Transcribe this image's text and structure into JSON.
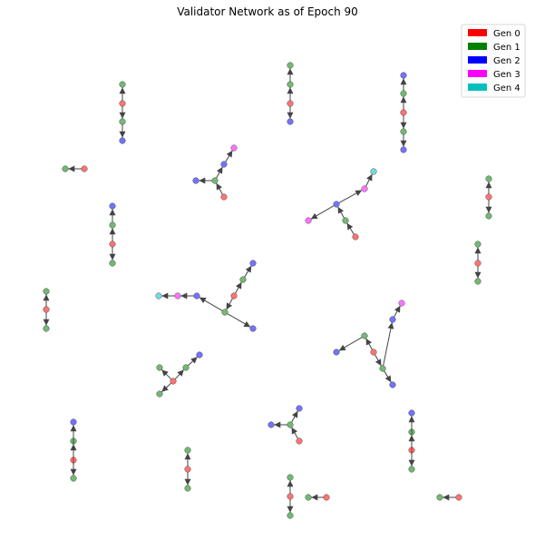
{
  "title": "Validator Network as of Epoch 90",
  "generations": [
    {
      "label": "Gen 0",
      "color": "#ff0000"
    },
    {
      "label": "Gen 1",
      "color": "#008000"
    },
    {
      "label": "Gen 2",
      "color": "#0000ff"
    },
    {
      "label": "Gen 3",
      "color": "#ff00ff"
    },
    {
      "label": "Gen 4",
      "color": "#00bfbf"
    }
  ],
  "nodes": [
    {
      "id": "a0",
      "gen": 0
    },
    {
      "id": "a1",
      "gen": 1
    },
    {
      "id": "a2",
      "gen": 1
    },
    {
      "id": "a3",
      "gen": 2
    },
    {
      "id": "b0",
      "gen": 0
    },
    {
      "id": "b1",
      "gen": 1
    },
    {
      "id": "b2",
      "gen": 1
    },
    {
      "id": "b3",
      "gen": 2
    },
    {
      "id": "c0",
      "gen": 0
    },
    {
      "id": "c1",
      "gen": 1
    },
    {
      "id": "c2",
      "gen": 1
    },
    {
      "id": "c3",
      "gen": 2
    },
    {
      "id": "c4",
      "gen": 2
    },
    {
      "id": "d0",
      "gen": 0
    },
    {
      "id": "d1",
      "gen": 1
    },
    {
      "id": "e0",
      "gen": 0
    },
    {
      "id": "e1",
      "gen": 1
    },
    {
      "id": "e2",
      "gen": 2
    },
    {
      "id": "e3",
      "gen": 2
    },
    {
      "id": "e4",
      "gen": 3
    },
    {
      "id": "f0",
      "gen": 0
    },
    {
      "id": "f1",
      "gen": 1
    },
    {
      "id": "f2",
      "gen": 1
    },
    {
      "id": "g0",
      "gen": 0
    },
    {
      "id": "g1",
      "gen": 1
    },
    {
      "id": "g2",
      "gen": 1
    },
    {
      "id": "g3",
      "gen": 2
    },
    {
      "id": "h0",
      "gen": 0
    },
    {
      "id": "h1",
      "gen": 1
    },
    {
      "id": "h2",
      "gen": 2
    },
    {
      "id": "h3",
      "gen": 3
    },
    {
      "id": "h4",
      "gen": 3
    },
    {
      "id": "h5",
      "gen": 4
    },
    {
      "id": "i0",
      "gen": 0
    },
    {
      "id": "i1",
      "gen": 1
    },
    {
      "id": "i2",
      "gen": 1
    },
    {
      "id": "j0",
      "gen": 0
    },
    {
      "id": "j1",
      "gen": 1
    },
    {
      "id": "j2",
      "gen": 1
    },
    {
      "id": "k0",
      "gen": 0
    },
    {
      "id": "k1",
      "gen": 1
    },
    {
      "id": "k2",
      "gen": 1
    },
    {
      "id": "l0",
      "gen": 0
    },
    {
      "id": "l1",
      "gen": 1
    },
    {
      "id": "l2",
      "gen": 1
    },
    {
      "id": "l3",
      "gen": 2
    },
    {
      "id": "l4",
      "gen": 2
    },
    {
      "id": "l5",
      "gen": 2
    },
    {
      "id": "l6",
      "gen": 3
    },
    {
      "id": "l7",
      "gen": 4
    },
    {
      "id": "m0",
      "gen": 0
    },
    {
      "id": "m1",
      "gen": 1
    },
    {
      "id": "m2",
      "gen": 1
    },
    {
      "id": "m3",
      "gen": 2
    },
    {
      "id": "m4",
      "gen": 2
    },
    {
      "id": "m5",
      "gen": 2
    },
    {
      "id": "m6",
      "gen": 3
    },
    {
      "id": "n0",
      "gen": 0
    },
    {
      "id": "n1",
      "gen": 1
    },
    {
      "id": "n2",
      "gen": 1
    },
    {
      "id": "n3",
      "gen": 1
    },
    {
      "id": "n4",
      "gen": 2
    },
    {
      "id": "o0",
      "gen": 0
    },
    {
      "id": "o1",
      "gen": 1
    },
    {
      "id": "o2",
      "gen": 2
    },
    {
      "id": "o3",
      "gen": 2
    },
    {
      "id": "p0",
      "gen": 0
    },
    {
      "id": "p1",
      "gen": 1
    },
    {
      "id": "p2",
      "gen": 1
    },
    {
      "id": "p3",
      "gen": 2
    },
    {
      "id": "q0",
      "gen": 0
    },
    {
      "id": "q1",
      "gen": 1
    },
    {
      "id": "q2",
      "gen": 1
    },
    {
      "id": "r0",
      "gen": 0
    },
    {
      "id": "r1",
      "gen": 1
    },
    {
      "id": "r2",
      "gen": 1
    },
    {
      "id": "r3",
      "gen": 2
    },
    {
      "id": "s0",
      "gen": 0
    },
    {
      "id": "s1",
      "gen": 1
    },
    {
      "id": "t0",
      "gen": 0
    },
    {
      "id": "t1",
      "gen": 1
    }
  ],
  "edges": [
    [
      "a0",
      "a1"
    ],
    [
      "a0",
      "a2"
    ],
    [
      "a2",
      "a3"
    ],
    [
      "b0",
      "b1"
    ],
    [
      "b1",
      "b2"
    ],
    [
      "b0",
      "b3"
    ],
    [
      "c0",
      "c1"
    ],
    [
      "c1",
      "c3"
    ],
    [
      "c0",
      "c2"
    ],
    [
      "c2",
      "c4"
    ],
    [
      "d0",
      "d1"
    ],
    [
      "e0",
      "e1"
    ],
    [
      "e1",
      "e2"
    ],
    [
      "e1",
      "e3"
    ],
    [
      "e3",
      "e4"
    ],
    [
      "f0",
      "f1"
    ],
    [
      "f0",
      "f2"
    ],
    [
      "g0",
      "g1"
    ],
    [
      "g0",
      "g2"
    ],
    [
      "g1",
      "g3"
    ],
    [
      "h0",
      "h1"
    ],
    [
      "h1",
      "h2"
    ],
    [
      "h2",
      "h3"
    ],
    [
      "h2",
      "h4"
    ],
    [
      "h4",
      "h5"
    ],
    [
      "i0",
      "i1"
    ],
    [
      "i0",
      "i2"
    ],
    [
      "j0",
      "j1"
    ],
    [
      "j0",
      "j2"
    ],
    [
      "k0",
      "k1"
    ],
    [
      "k0",
      "k2"
    ],
    [
      "l0",
      "l1"
    ],
    [
      "l0",
      "l2"
    ],
    [
      "l1",
      "l3"
    ],
    [
      "l1",
      "l4"
    ],
    [
      "l4",
      "l6"
    ],
    [
      "l6",
      "l7"
    ],
    [
      "l2",
      "l5"
    ],
    [
      "m0",
      "m1"
    ],
    [
      "m0",
      "m2"
    ],
    [
      "m1",
      "m3"
    ],
    [
      "m2",
      "m4"
    ],
    [
      "m2",
      "m5"
    ],
    [
      "m5",
      "m6"
    ],
    [
      "n0",
      "n1"
    ],
    [
      "n0",
      "n2"
    ],
    [
      "n0",
      "n3"
    ],
    [
      "n2",
      "n4"
    ],
    [
      "o0",
      "o1"
    ],
    [
      "o1",
      "o2"
    ],
    [
      "o1",
      "o3"
    ],
    [
      "p0",
      "p1"
    ],
    [
      "p1",
      "p2"
    ],
    [
      "p0",
      "p3"
    ],
    [
      "q0",
      "q1"
    ],
    [
      "q0",
      "q2"
    ],
    [
      "r0",
      "r1"
    ],
    [
      "r1",
      "r2"
    ],
    [
      "r0",
      "r3"
    ],
    [
      "s0",
      "s1"
    ],
    [
      "t0",
      "t1"
    ]
  ]
}
